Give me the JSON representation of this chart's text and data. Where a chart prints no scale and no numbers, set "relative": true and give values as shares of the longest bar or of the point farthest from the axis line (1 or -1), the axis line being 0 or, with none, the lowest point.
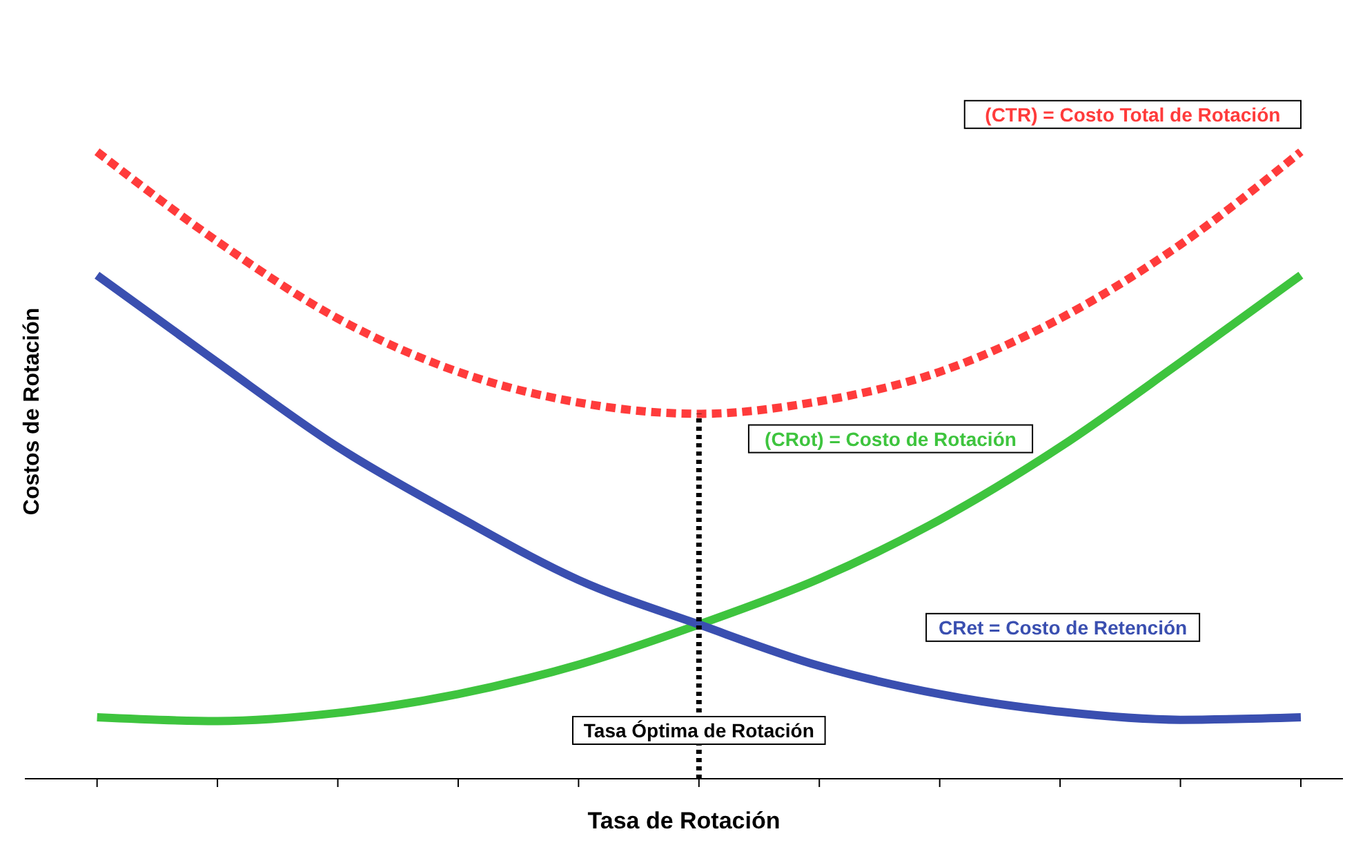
{
  "chart_data": {
    "type": "line",
    "relative": true,
    "xlabel": "Tasa de Rotación",
    "ylabel": "Costos de Rotación",
    "categories": [
      null,
      null,
      null,
      null,
      null,
      null,
      null,
      null,
      null,
      null,
      null
    ],
    "series": [
      {
        "name": "(CTR) = Costo Total de Rotación",
        "color": "#ff3b3b",
        "line_style": "dashed",
        "values": [
          1,
          0.857,
          0.734,
          0.649,
          0.6,
          0.582,
          0.602,
          0.649,
          0.734,
          0.852,
          1
        ]
      },
      {
        "name": "(CRot) = Costo de Rotación",
        "color": "#3ec43e",
        "values": [
          0.098,
          0.092,
          0.105,
          0.135,
          0.182,
          0.246,
          0.319,
          0.413,
          0.529,
          0.664,
          0.803
        ]
      },
      {
        "name": "CRet = Costo de Retención",
        "color": "#3a4fb0",
        "values": [
          0.803,
          0.664,
          0.529,
          0.418,
          0.317,
          0.246,
          0.18,
          0.135,
          0.107,
          0.094,
          0.098
        ]
      }
    ],
    "annotations": [
      "Tasa Óptima de Rotación"
    ]
  }
}
